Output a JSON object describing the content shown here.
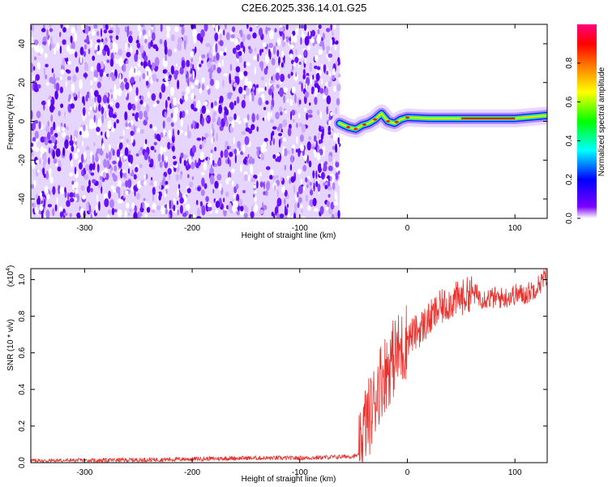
{
  "chart_data": [
    {
      "type": "heatmap",
      "title": "C2E6.2025.336.14.01.G25",
      "xlabel": "Height of straight line (km)",
      "ylabel": "Frequency (Hz)",
      "xlim": [
        -350,
        130
      ],
      "ylim": [
        -50,
        50
      ],
      "xticks": [
        -300,
        -200,
        -100,
        0,
        100
      ],
      "xtick_labels": [
        "-300",
        "-200",
        "-100",
        "0",
        "100"
      ],
      "yticks": [
        -40,
        -20,
        0,
        20,
        40
      ],
      "ytick_labels": [
        "-40",
        "-20",
        "0",
        "20",
        "40"
      ],
      "noise_region_x": [
        -350,
        -63
      ],
      "signal_track": {
        "x": [
          -63,
          -55,
          -48,
          -42,
          -36,
          -30,
          -24,
          -18,
          -12,
          -6,
          0,
          20,
          40,
          60,
          80,
          100,
          130
        ],
        "freq": [
          -1,
          -3,
          -4,
          -2,
          -1,
          1,
          4,
          0,
          -1,
          1,
          2,
          1.5,
          1.5,
          1.5,
          1.5,
          1.5,
          3
        ]
      },
      "colorbar": {
        "label": "Normalized spectral amplitude",
        "range": [
          0.0,
          1.0
        ],
        "ticks": [
          0.0,
          0.2,
          0.4,
          0.6,
          0.8
        ],
        "tick_labels": [
          "0.0",
          "0.2",
          "0.4",
          "0.6",
          "0.8"
        ],
        "colors": [
          "#ffffff",
          "#7a00ff",
          "#0000ff",
          "#00ffff",
          "#00ff00",
          "#ffff00",
          "#ff8000",
          "#ff0000",
          "#ff0080"
        ]
      }
    },
    {
      "type": "line",
      "xlabel": "Height of straight line (km)",
      "ylabel": "SNR (10 * v/v)",
      "multiplier_base": "(x10",
      "multiplier_exp": "4",
      "multiplier_close": ")",
      "xlim": [
        -350,
        130
      ],
      "ylim": [
        0.0,
        1.06
      ],
      "xticks": [
        -300,
        -200,
        -100,
        0,
        100
      ],
      "xtick_labels": [
        "-300",
        "-200",
        "-100",
        "0",
        "100"
      ],
      "yticks": [
        0.0,
        0.2,
        0.4,
        0.6,
        0.8,
        1.0
      ],
      "ytick_labels": [
        "0.0",
        "0.2",
        "0.4",
        "0.6",
        "0.8",
        "1.0"
      ],
      "series": [
        {
          "name": "SNR",
          "color": "#e8322e",
          "x": [
            -350,
            -300,
            -250,
            -200,
            -150,
            -100,
            -70,
            -50,
            -45,
            -42,
            -40,
            -36,
            -32,
            -28,
            -25,
            -20,
            -15,
            -10,
            -5,
            0,
            10,
            20,
            30,
            40,
            50,
            60,
            70,
            80,
            90,
            100,
            110,
            120,
            130
          ],
          "y": [
            0.01,
            0.012,
            0.015,
            0.02,
            0.025,
            0.025,
            0.03,
            0.035,
            0.04,
            0.1,
            0.2,
            0.25,
            0.3,
            0.4,
            0.45,
            0.5,
            0.55,
            0.6,
            0.62,
            0.68,
            0.72,
            0.78,
            0.84,
            0.88,
            0.9,
            0.93,
            0.9,
            0.9,
            0.9,
            0.92,
            0.92,
            0.96,
            1.02
          ]
        }
      ]
    }
  ]
}
